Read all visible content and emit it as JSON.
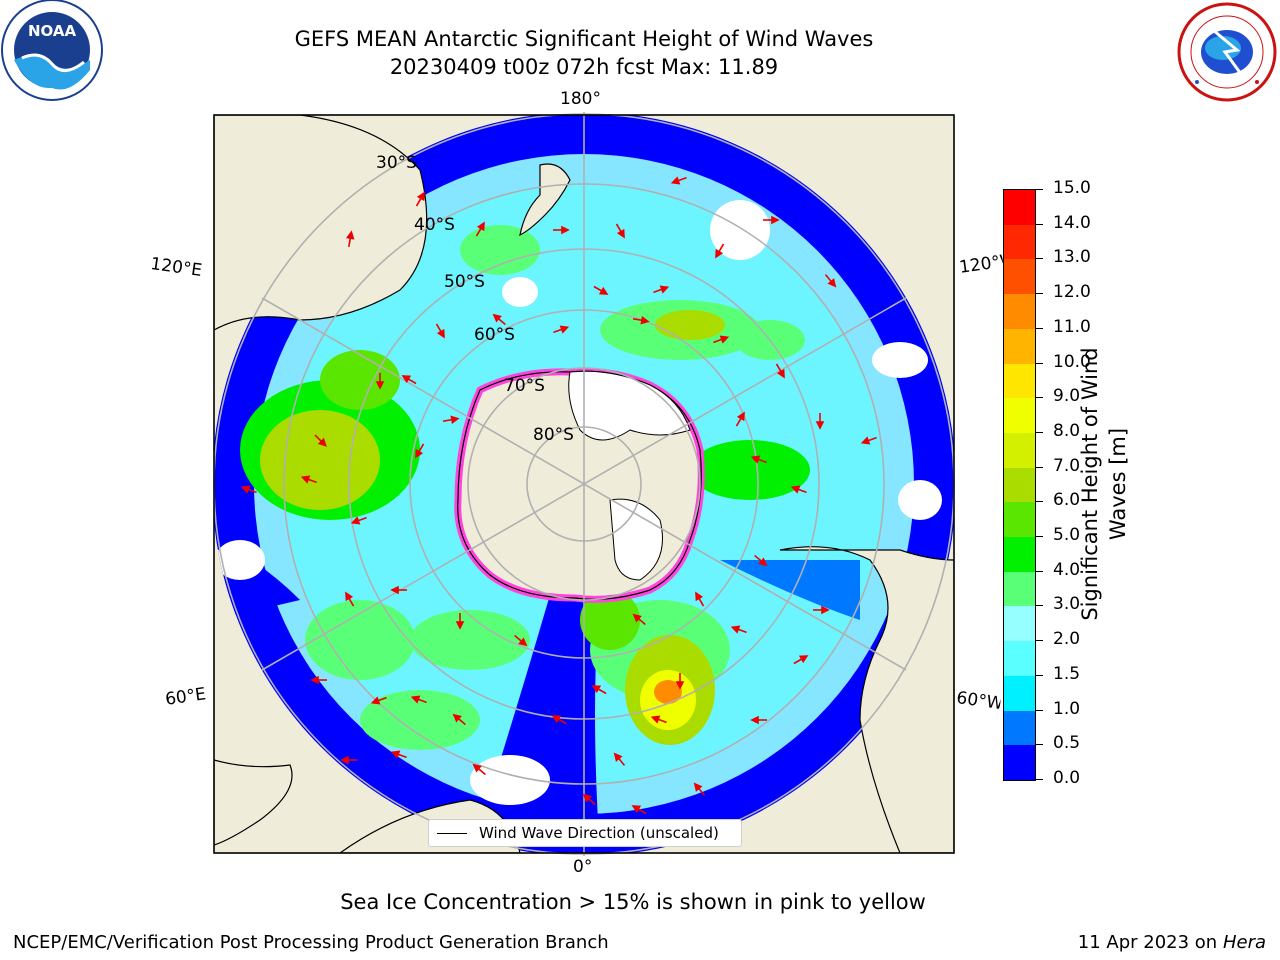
{
  "header": {
    "title_line1": "GEFS MEAN Antarctic Significant Height of Wind Waves",
    "title_line2": "20230409 t00z 072h fcst   Max: 11.89"
  },
  "logos": {
    "left": {
      "name": "noaa-logo",
      "text": "NOAA",
      "ring_text": "NATIONAL OCEANIC AND ATMOSPHERIC ADMINISTRATION · U.S. DEPARTMENT OF COMMERCE"
    },
    "right": {
      "name": "nws-logo",
      "ring_text": "NATIONAL WEATHER SERVICE"
    }
  },
  "map": {
    "projection": "south-polar-stereographic",
    "lon_labels": {
      "top": "180°",
      "bottom": "0°",
      "upper_left": "120°E",
      "upper_right": "120°W",
      "lower_left": "60°E",
      "lower_right": "60°W"
    },
    "lat_labels": [
      "30°S",
      "40°S",
      "50°S",
      "60°S",
      "70°S",
      "80°S"
    ],
    "legend_label": "Wind Wave Direction (unscaled)",
    "colors": {
      "land": "#efedda",
      "ice_edge": "#ff44dd",
      "arrow": "#ee0000",
      "grid": "#b0b0b0"
    }
  },
  "colorbar": {
    "label_line1": "Significant Height of Wind",
    "label_line2": "Waves [m]",
    "ticks": [
      "0.0",
      "0.5",
      "1.0",
      "1.5",
      "2.0",
      "3.0",
      "4.0",
      "5.0",
      "6.0",
      "7.0",
      "8.0",
      "9.0",
      "10.0",
      "11.0",
      "12.0",
      "13.0",
      "14.0",
      "15.0"
    ],
    "colors": [
      "#0000ff",
      "#0078ff",
      "#00f0ff",
      "#5affff",
      "#96ffff",
      "#5aff78",
      "#00f000",
      "#5ae600",
      "#aadc00",
      "#d2f000",
      "#f0ff00",
      "#ffe600",
      "#ffb400",
      "#ff8c00",
      "#ff5000",
      "#ff2800",
      "#ff0000"
    ]
  },
  "caption": "Sea Ice Concentration > 15% is shown in pink to yellow",
  "footer": {
    "left": "NCEP/EMC/Verification Post Processing Product Generation Branch",
    "right_prefix": "11 Apr 2023 on ",
    "right_machine": "Hera"
  }
}
